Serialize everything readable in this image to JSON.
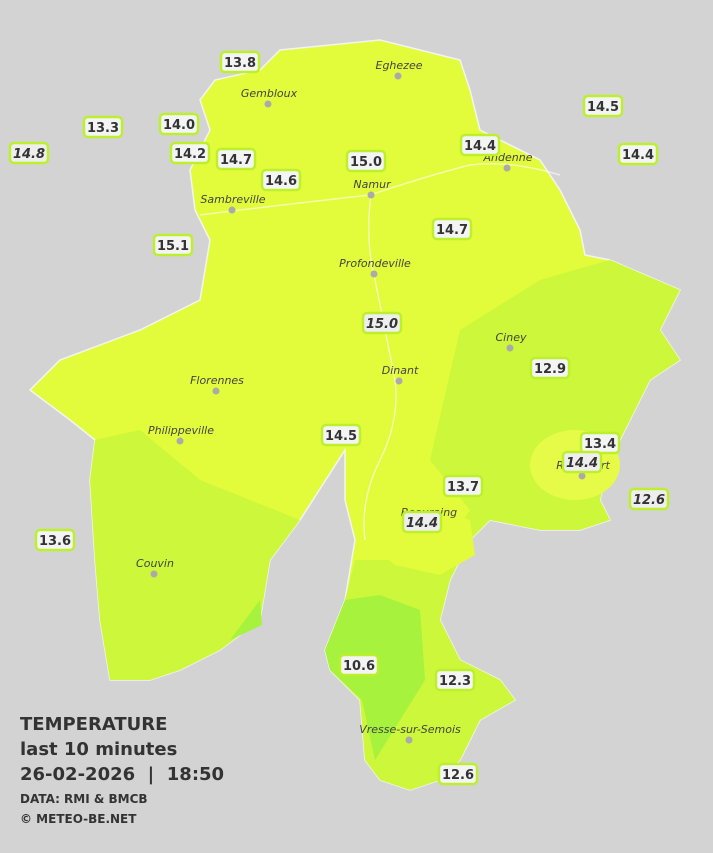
{
  "map": {
    "cities": [
      "Eghezee",
      "Gembloux",
      "Andenne",
      "Namur",
      "Sambreville",
      "Profondeville",
      "Ciney",
      "Dinant",
      "Florennes",
      "Philippeville",
      "Rochefort",
      "Beauraing",
      "Couvin",
      "Vresse-sur-Semois"
    ],
    "stations": [
      "13.8",
      "13.3",
      "14.0",
      "14.8",
      "14.2",
      "14.7",
      "14.6",
      "15.0",
      "14.4",
      "14.5",
      "14.4",
      "15.1",
      "14.7",
      "15.0",
      "12.9",
      "14.5",
      "13.4",
      "14.4",
      "13.7",
      "12.6",
      "14.4",
      "13.6",
      "10.6",
      "12.3",
      "12.6"
    ]
  },
  "legend": {
    "title": "TEMPERATURE",
    "subtitle": "last 10 minutes",
    "datetime": "26-02-2026  |  18:50",
    "source": "DATA: RMI & BMCB",
    "copyright": "© METEO-BE.NET"
  }
}
